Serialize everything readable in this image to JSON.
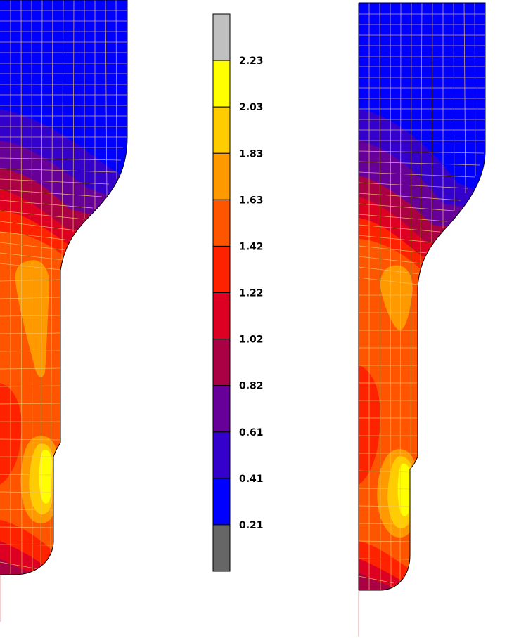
{
  "legend": {
    "labels": [
      "2.23",
      "2.03",
      "1.83",
      "1.63",
      "1.42",
      "1.22",
      "1.02",
      "0.82",
      "0.61",
      "0.41",
      "0.21"
    ],
    "colors": [
      "#c0c0c0",
      "#ffff00",
      "#ffcc00",
      "#ff9900",
      "#ff5500",
      "#ff2200",
      "#dd0022",
      "#aa0044",
      "#660099",
      "#3300cc",
      "#0000ff",
      "#666666"
    ]
  },
  "colors": {
    "mesh": "#f0c36a",
    "outline": "#000000",
    "axis": "#e8a0a0"
  }
}
